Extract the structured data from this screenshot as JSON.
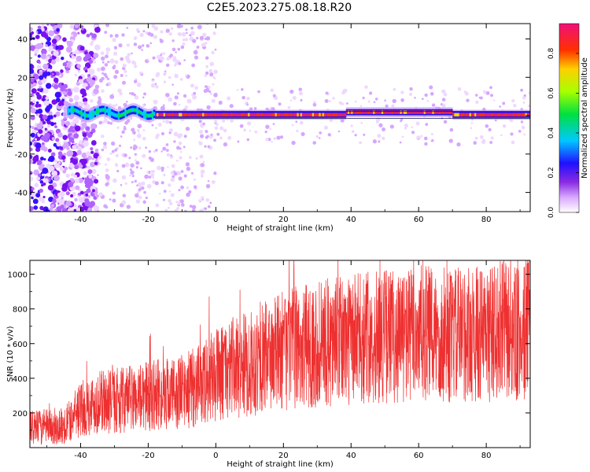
{
  "title": "C2E5.2023.275.08.18.R20",
  "colors": {
    "snr_line": "#ee3030",
    "colormap": [
      "#ffffff",
      "#c060ff",
      "#5a00ff",
      "#1020ff",
      "#00c8ff",
      "#00e060",
      "#b0ff00",
      "#ffd000",
      "#ff4000",
      "#f01880"
    ]
  },
  "chart_data": [
    {
      "type": "heatmap",
      "xlabel": "Height of straight line (km)",
      "ylabel": "Frequency (Hz)",
      "xlim": [
        -55,
        93
      ],
      "ylim": [
        -50,
        48
      ],
      "xticks": [
        -40,
        -20,
        0,
        20,
        40,
        60,
        80
      ],
      "yticks": [
        -40,
        -20,
        0,
        20,
        40
      ],
      "grid": false,
      "description_series": [
        {
          "x_range": [
            -55,
            -38
          ],
          "center_freq": 0,
          "content": "noise scattered across all frequencies"
        },
        {
          "x_range": [
            -45,
            -18
          ],
          "center_freq": 1.5,
          "content": "spectral line, amplitude ~0.4-0.6"
        },
        {
          "x_range": [
            -18,
            93
          ],
          "center_freq": 0.5,
          "content": "strong spectral line, amplitude ~0.8-0.9"
        }
      ],
      "colorbar": {
        "label": "Normalized spectral amplitude",
        "range": [
          0.0,
          0.95
        ],
        "ticks": [
          0.0,
          0.2,
          0.4,
          0.6,
          0.8
        ]
      }
    },
    {
      "type": "line",
      "xlabel": "Height of straight line (km)",
      "ylabel": "SNR (10 * v/v)",
      "xlim": [
        -55,
        93
      ],
      "ylim": [
        0,
        1080
      ],
      "xticks": [
        -40,
        -20,
        0,
        20,
        40,
        60,
        80
      ],
      "yticks": [
        200,
        400,
        600,
        800,
        1000
      ],
      "grid": false,
      "series": [
        {
          "x": [
            -55,
            -50,
            -45,
            -40,
            -35,
            -30,
            -25,
            -20,
            -15,
            -10,
            -5,
            0,
            5,
            10,
            15,
            20,
            25,
            30,
            35,
            40,
            45,
            50,
            55,
            60,
            65,
            70,
            75,
            80,
            85,
            90,
            93
          ],
          "values": [
            110,
            120,
            125,
            220,
            260,
            270,
            280,
            300,
            310,
            320,
            360,
            420,
            460,
            480,
            520,
            560,
            580,
            600,
            610,
            620,
            640,
            650,
            640,
            660,
            650,
            640,
            660,
            650,
            680,
            640,
            700
          ]
        }
      ]
    }
  ]
}
